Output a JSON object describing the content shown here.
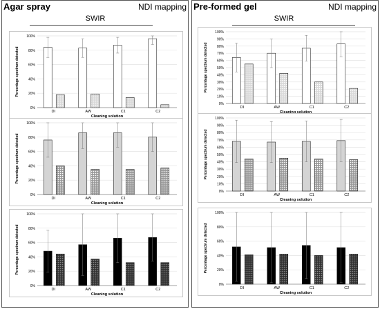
{
  "panels": [
    {
      "title": "Agar spray",
      "mapping_label": "NDI mapping",
      "header": "SWIR",
      "charts": [
        {
          "type": "bar",
          "ylabel": "Percentage spectrum detected",
          "xlabel": "Cleaning solution",
          "categories": [
            "DI",
            "AW",
            "C1",
            "C2"
          ],
          "yticks": [
            "0%",
            "20%",
            "40%",
            "60%",
            "80%",
            "100%"
          ],
          "ylim": [
            0,
            100
          ],
          "series": [
            {
              "fill": "#ffffff",
              "pattern": "none",
              "values": [
                84,
                83,
                87,
                96
              ],
              "err": [
                14,
                13,
                11,
                8
              ]
            },
            {
              "fill": "#d9d9d9",
              "pattern": "dots",
              "values": [
                18,
                19,
                14,
                4
              ],
              "err": [
                0,
                0,
                0,
                0
              ]
            }
          ]
        },
        {
          "type": "bar",
          "ylabel": "Percentage spectrum detected",
          "xlabel": "Cleaning solution",
          "categories": [
            "DI",
            "AW",
            "C1",
            "C2"
          ],
          "yticks": [
            "0%",
            "20%",
            "40%",
            "60%",
            "80%",
            "100%"
          ],
          "ylim": [
            0,
            100
          ],
          "series": [
            {
              "fill": "#d4d4d4",
              "pattern": "none",
              "values": [
                76,
                86,
                86,
                80
              ],
              "err": [
                24,
                22,
                20,
                20
              ]
            },
            {
              "fill": "#9a9a9a",
              "pattern": "dots",
              "values": [
                40,
                35,
                35,
                37
              ],
              "err": [
                0,
                0,
                0,
                0
              ]
            }
          ]
        },
        {
          "type": "bar",
          "ylabel": "Percentage spectrum detected",
          "xlabel": "Cleaning solution",
          "categories": [
            "DI",
            "AW",
            "C1",
            "C2"
          ],
          "yticks": [
            "0%",
            "20%",
            "40%",
            "60%",
            "80%",
            "100%"
          ],
          "ylim": [
            0,
            100
          ],
          "series": [
            {
              "fill": "#000000",
              "pattern": "none",
              "values": [
                48,
                57,
                66,
                67
              ],
              "err": [
                29,
                43,
                34,
                33
              ]
            },
            {
              "fill": "#333333",
              "pattern": "dots",
              "values": [
                44,
                37,
                32,
                32
              ],
              "err": [
                0,
                0,
                0,
                0
              ]
            }
          ]
        }
      ]
    },
    {
      "title": "Pre-formed gel",
      "mapping_label": "NDI mapping",
      "header": "SWIR",
      "charts": [
        {
          "type": "bar",
          "ylabel": "Percentage spectrum detected",
          "xlabel": "Cleaning solution",
          "categories": [
            "DI",
            "AW",
            "C1",
            "C2"
          ],
          "yticks": [
            "0%",
            "10%",
            "20%",
            "30%",
            "40%",
            "50%",
            "60%",
            "70%",
            "80%",
            "90%",
            "100%"
          ],
          "ylim": [
            0,
            100
          ],
          "series": [
            {
              "fill": "#ffffff",
              "pattern": "none",
              "values": [
                64,
                70,
                77,
                83
              ],
              "err": [
                20,
                20,
                18,
                18
              ]
            },
            {
              "fill": "#d9d9d9",
              "pattern": "dots",
              "values": [
                55,
                42,
                30,
                21
              ],
              "err": [
                0,
                0,
                0,
                0
              ]
            }
          ]
        },
        {
          "type": "bar",
          "ylabel": "Percentage spectrum detected",
          "xlabel": "Cleaning solution",
          "categories": [
            "DI",
            "AW",
            "C1",
            "C2"
          ],
          "yticks": [
            "0%",
            "10%",
            "20%",
            "30%",
            "40%",
            "50%",
            "60%",
            "70%",
            "80%",
            "90%",
            "100%"
          ],
          "ylim": [
            0,
            100
          ],
          "series": [
            {
              "fill": "#d4d4d4",
              "pattern": "none",
              "values": [
                68,
                67,
                68,
                69
              ],
              "err": [
                29,
                28,
                28,
                29
              ]
            },
            {
              "fill": "#9a9a9a",
              "pattern": "dots",
              "values": [
                44,
                45,
                44,
                43
              ],
              "err": [
                0,
                0,
                0,
                0
              ]
            }
          ]
        },
        {
          "type": "bar",
          "ylabel": "Percentage spectrum detected",
          "xlabel": "Cleaning solution",
          "categories": [
            "DI",
            "AW",
            "C1",
            "C2"
          ],
          "yticks": [
            "0%",
            "20%",
            "40%",
            "60%",
            "80%",
            "100%"
          ],
          "ylim": [
            0,
            100
          ],
          "series": [
            {
              "fill": "#000000",
              "pattern": "none",
              "values": [
                52,
                51,
                54,
                51
              ],
              "err": [
                48,
                49,
                46,
                49
              ]
            },
            {
              "fill": "#333333",
              "pattern": "dots",
              "values": [
                41,
                42,
                40,
                42
              ],
              "err": [
                0,
                0,
                0,
                0
              ]
            }
          ]
        }
      ]
    }
  ]
}
